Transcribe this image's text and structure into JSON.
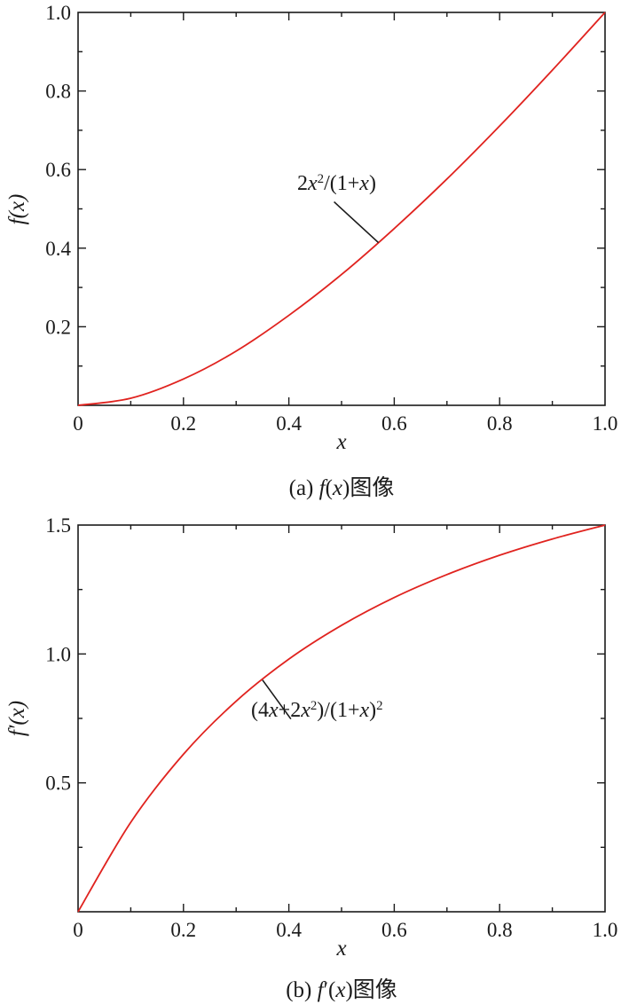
{
  "chart_data": [
    {
      "type": "line",
      "caption": "(a) f(x)图像",
      "xlabel": "x",
      "ylabel": "f(x)",
      "xlim": [
        0,
        1
      ],
      "ylim": [
        0,
        1
      ],
      "x_ticks": [
        0,
        0.2,
        0.4,
        0.6,
        0.8,
        1.0
      ],
      "x_tick_labels": [
        "0",
        "0.2",
        "0.4",
        "0.6",
        "0.8",
        "1.0"
      ],
      "y_ticks": [
        0.2,
        0.4,
        0.6,
        0.8,
        1.0
      ],
      "y_tick_labels": [
        "0.2",
        "0.4",
        "0.6",
        "0.8",
        "1.0"
      ],
      "grid": false,
      "series": [
        {
          "color": "#e0231f",
          "x": [
            0,
            0.1,
            0.2,
            0.3,
            0.4,
            0.5,
            0.6,
            0.7,
            0.8,
            0.9,
            1.0
          ],
          "y": [
            0,
            0.018,
            0.067,
            0.138,
            0.229,
            0.333,
            0.45,
            0.576,
            0.711,
            0.853,
            1.0
          ]
        }
      ],
      "annotation": {
        "text": "2x²/(1+x)",
        "x": 0.57,
        "y": 0.414
      }
    },
    {
      "type": "line",
      "caption": "(b) f′(x)图像",
      "xlabel": "x",
      "ylabel": "f′(x)",
      "xlim": [
        0,
        1
      ],
      "ylim": [
        0,
        1.5
      ],
      "x_ticks": [
        0,
        0.2,
        0.4,
        0.6,
        0.8,
        1.0
      ],
      "x_tick_labels": [
        "0",
        "0.2",
        "0.4",
        "0.6",
        "0.8",
        "1.0"
      ],
      "y_ticks": [
        0.5,
        1.0,
        1.5
      ],
      "y_tick_labels": [
        "0.5",
        "1.0",
        "1.5"
      ],
      "grid": false,
      "series": [
        {
          "color": "#e0231f",
          "x": [
            0,
            0.1,
            0.2,
            0.3,
            0.4,
            0.5,
            0.6,
            0.7,
            0.8,
            0.9,
            1.0
          ],
          "y": [
            0,
            0.347,
            0.611,
            0.817,
            0.98,
            1.111,
            1.219,
            1.308,
            1.383,
            1.446,
            1.5
          ]
        }
      ],
      "annotation": {
        "text": "(4x+2x²)/(1+x)²",
        "x": 0.35,
        "y": 0.899
      }
    }
  ]
}
